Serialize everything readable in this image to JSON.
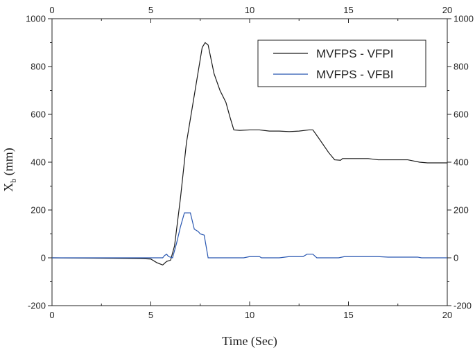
{
  "chart_data": {
    "type": "line",
    "x_label": "Time (Sec)",
    "y_label": "X",
    "y_label_subscript": "b",
    "y_label_unit": "(mm)",
    "xlim": [
      0,
      20
    ],
    "xticks": [
      0,
      5,
      10,
      15,
      20
    ],
    "x_minor_ticks": [
      2.5,
      7.5,
      12.5,
      17.5
    ],
    "ylim": [
      -200,
      1000
    ],
    "yticks": [
      -200,
      0,
      200,
      400,
      600,
      800,
      1000
    ],
    "y_minor_ticks": [
      -100,
      100,
      300,
      500,
      700,
      900
    ],
    "mirror_axes": true,
    "legend": "upper right",
    "series": [
      {
        "name": "MVFPS - VFPI",
        "color": "#1a1a1a",
        "x": [
          0,
          4.5,
          5.0,
          5.3,
          5.6,
          5.8,
          6.0,
          6.2,
          6.5,
          6.8,
          7.0,
          7.3,
          7.6,
          7.75,
          7.9,
          8.0,
          8.2,
          8.5,
          8.8,
          9.0,
          9.2,
          9.5,
          10,
          10.5,
          11,
          11.5,
          12,
          12.5,
          13,
          13.2,
          13.5,
          14,
          14.3,
          14.6,
          14.7,
          15,
          16,
          16.5,
          18,
          18.6,
          19,
          20
        ],
        "values": [
          0,
          -3,
          -5,
          -20,
          -30,
          -15,
          -10,
          50,
          250,
          480,
          580,
          730,
          880,
          900,
          890,
          850,
          770,
          700,
          650,
          590,
          535,
          533,
          535,
          535,
          530,
          530,
          528,
          530,
          535,
          535,
          500,
          440,
          410,
          408,
          415,
          415,
          415,
          410,
          410,
          400,
          397,
          397
        ]
      },
      {
        "name": "MVFPS - VFBI",
        "color": "#2856b0",
        "x": [
          0,
          5.6,
          5.7,
          5.8,
          5.9,
          6.1,
          6.3,
          6.5,
          6.7,
          7.0,
          7.2,
          7.4,
          7.5,
          7.7,
          7.9,
          9.7,
          10.0,
          10.5,
          10.6,
          11.5,
          12,
          12.7,
          12.9,
          13.2,
          13.4,
          14.5,
          14.8,
          16.5,
          17,
          18.5,
          18.7,
          20
        ],
        "values": [
          0,
          0,
          10,
          15,
          5,
          0,
          60,
          130,
          188,
          188,
          120,
          110,
          100,
          95,
          0,
          0,
          5,
          5,
          0,
          0,
          5,
          5,
          15,
          15,
          0,
          0,
          5,
          5,
          3,
          3,
          0,
          0
        ]
      }
    ]
  }
}
